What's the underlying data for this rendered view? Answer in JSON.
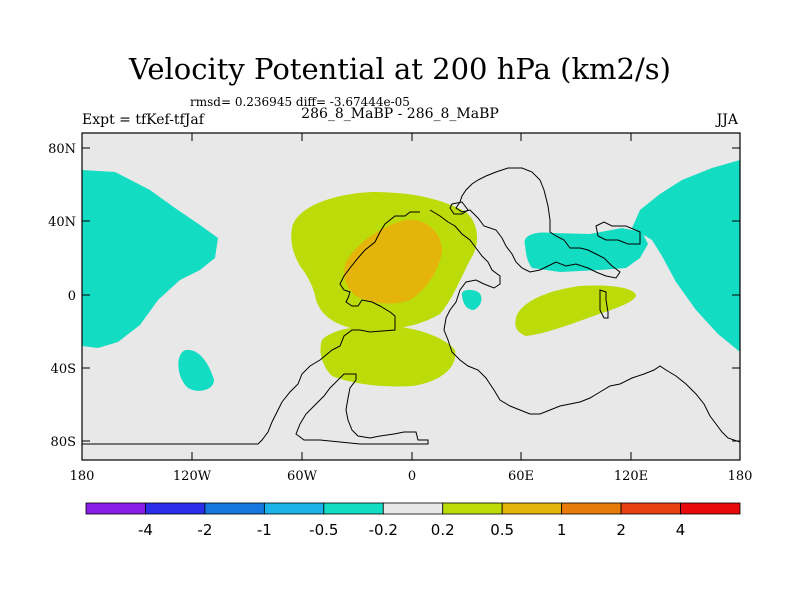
{
  "title": "Velocity Potential at 200 hPa (km2/s)",
  "stats": "rmsd= 0.236945 diff= -3.67444e-05",
  "experiment": "Expt = tfKef-tfJaf",
  "subtitle": "286_8_MaBP - 286_8_MaBP",
  "season": "JJA",
  "y_ticks": [
    "80N",
    "40N",
    "0",
    "40S",
    "80S"
  ],
  "x_ticks": [
    "180",
    "120W",
    "60W",
    "0",
    "60E",
    "120E",
    "180"
  ],
  "colorbar": {
    "colors": [
      "#8a1de8",
      "#2a2ee8",
      "#1677e0",
      "#1cb3e8",
      "#12dcc2",
      "#e8e8e8",
      "#bcdc0a",
      "#e4b40a",
      "#e87a0a",
      "#e84010",
      "#e80a0a"
    ],
    "labels": [
      "-4",
      "-2",
      "-1",
      "-0.5",
      "-0.2",
      "0.2",
      "0.5",
      "1",
      "2",
      "4"
    ]
  },
  "colors": {
    "background": "#e8e8e8",
    "negative_fill": "#12dcc2",
    "positive_fill": "#bcdc0a",
    "strong_positive_fill": "#e4b40a"
  }
}
